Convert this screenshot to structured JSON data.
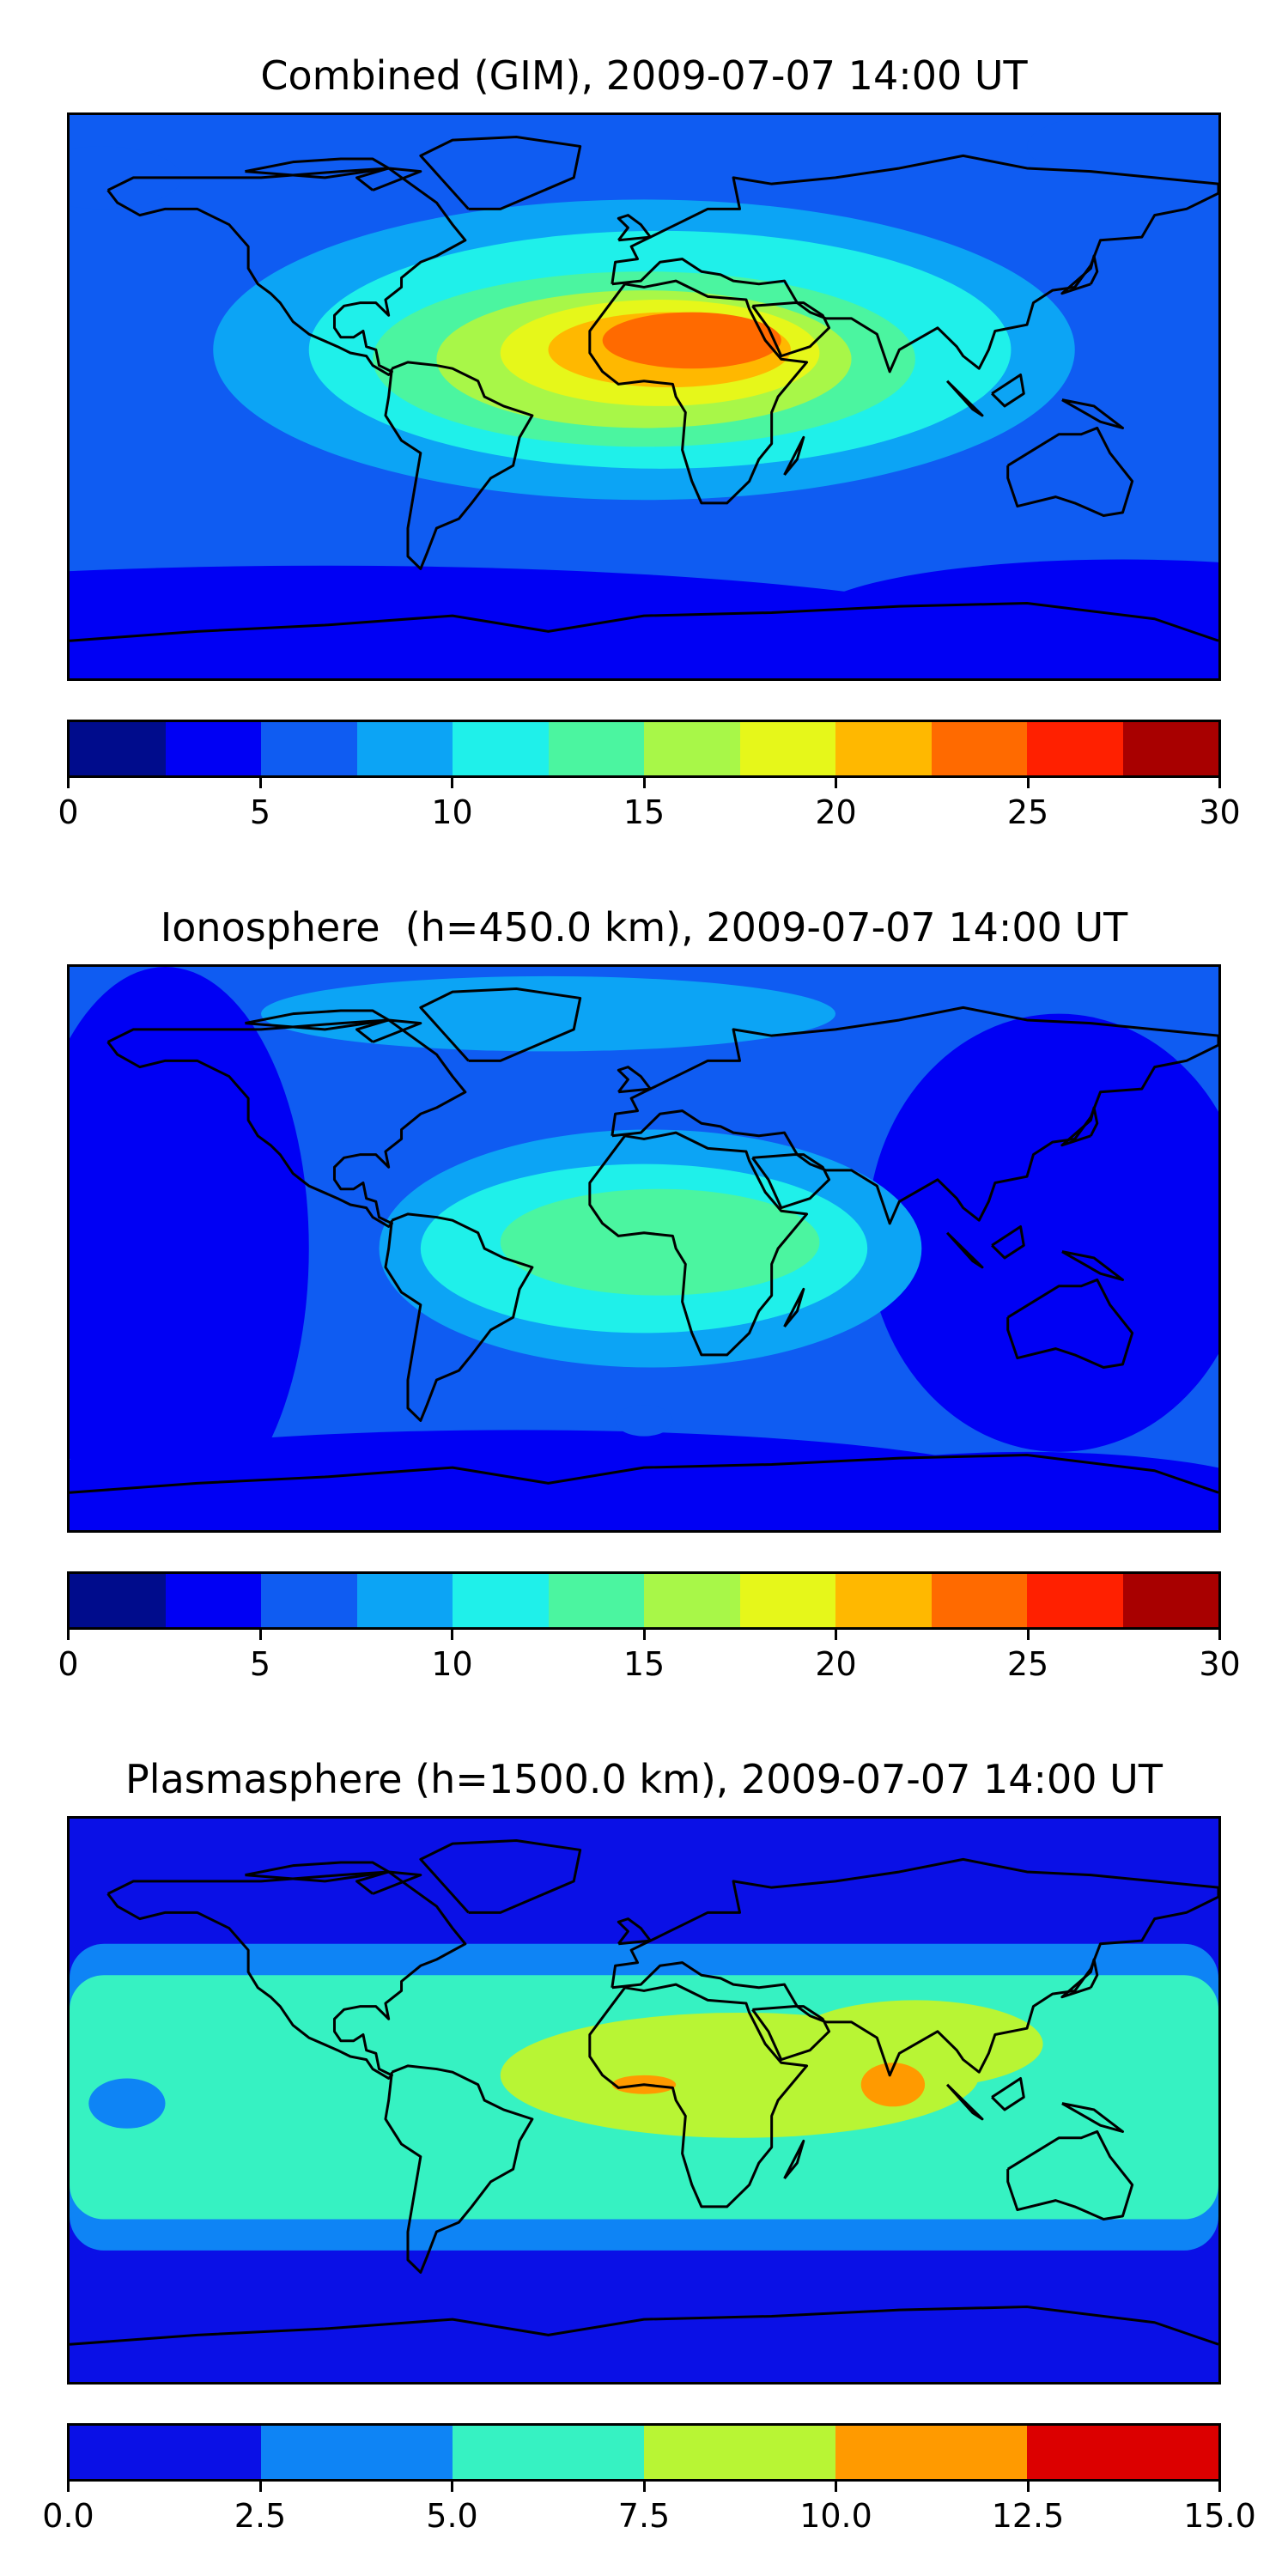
{
  "chart_data": [
    {
      "type": "heatmap",
      "title": "Combined (GIM), 2009-07-07 14:00 UT",
      "colorbar": {
        "range": [
          0,
          30
        ],
        "boundaries": [
          0,
          2.5,
          5,
          7.5,
          10,
          12.5,
          15,
          17.5,
          20,
          22.5,
          25,
          27.5,
          30
        ],
        "colors": [
          "#000c8c",
          "#0000f4",
          "#0f5cf2",
          "#0ca4f5",
          "#1ff0ea",
          "#4bf5a0",
          "#a8f748",
          "#e6f71a",
          "#ffb800",
          "#ff6a00",
          "#ff2000",
          "#a80000"
        ],
        "tick_values": [
          0,
          5,
          10,
          15,
          20,
          25,
          30
        ],
        "tick_labels": [
          "0",
          "5",
          "10",
          "15",
          "20",
          "25",
          "30"
        ]
      },
      "lon_range": [
        -180,
        180
      ],
      "lat_range": [
        -90,
        90
      ],
      "background_level": 2,
      "features": [
        {
          "level": 1,
          "lon": -100,
          "lat": -82,
          "rx": 230,
          "ry": 28
        },
        {
          "level": 1,
          "lon": 150,
          "lat": -72,
          "rx": 100,
          "ry": 20
        },
        {
          "level": 2,
          "lon": 160,
          "lat": 80,
          "rx": 40,
          "ry": 12
        },
        {
          "level": 2,
          "lon": -170,
          "lat": 70,
          "rx": 25,
          "ry": 10
        },
        {
          "level": 3,
          "lon": 0,
          "lat": 15,
          "rx": 135,
          "ry": 48
        },
        {
          "level": 4,
          "lon": 5,
          "lat": 15,
          "rx": 110,
          "ry": 38
        },
        {
          "level": 5,
          "lon": 0,
          "lat": 12,
          "rx": 85,
          "ry": 28
        },
        {
          "level": 6,
          "lon": 0,
          "lat": 12,
          "rx": 65,
          "ry": 22
        },
        {
          "level": 7,
          "lon": 5,
          "lat": 14,
          "rx": 50,
          "ry": 17
        },
        {
          "level": 8,
          "lon": 8,
          "lat": 15,
          "rx": 38,
          "ry": 12
        },
        {
          "level": 9,
          "lon": 15,
          "lat": 18,
          "rx": 28,
          "ry": 9
        }
      ]
    },
    {
      "type": "heatmap",
      "title": "Ionosphere  (h=450.0 km), 2009-07-07 14:00 UT",
      "colorbar": {
        "range": [
          0,
          30
        ],
        "boundaries": [
          0,
          2.5,
          5,
          7.5,
          10,
          12.5,
          15,
          17.5,
          20,
          22.5,
          25,
          27.5,
          30
        ],
        "colors": [
          "#000c8c",
          "#0000f4",
          "#0f5cf2",
          "#0ca4f5",
          "#1ff0ea",
          "#4bf5a0",
          "#a8f748",
          "#e6f71a",
          "#ffb800",
          "#ff6a00",
          "#ff2000",
          "#a80000"
        ],
        "tick_values": [
          0,
          5,
          10,
          15,
          20,
          25,
          30
        ],
        "tick_labels": [
          "0",
          "5",
          "10",
          "15",
          "20",
          "25",
          "30"
        ]
      },
      "lon_range": [
        -180,
        180
      ],
      "lat_range": [
        -90,
        90
      ],
      "background_level": 2,
      "features": [
        {
          "level": 1,
          "lon": -150,
          "lat": 0,
          "rx": 45,
          "ry": 90
        },
        {
          "level": 1,
          "lon": 130,
          "lat": 5,
          "rx": 60,
          "ry": 70
        },
        {
          "level": 1,
          "lon": -40,
          "lat": -80,
          "rx": 170,
          "ry": 22
        },
        {
          "level": 1,
          "lon": 120,
          "lat": -80,
          "rx": 80,
          "ry": 15
        },
        {
          "level": 3,
          "lon": -30,
          "lat": 75,
          "rx": 90,
          "ry": 12
        },
        {
          "level": 3,
          "lon": 2,
          "lat": 0,
          "rx": 85,
          "ry": 38
        },
        {
          "level": 4,
          "lon": 0,
          "lat": 0,
          "rx": 70,
          "ry": 27
        },
        {
          "level": 5,
          "lon": 5,
          "lat": 2,
          "rx": 50,
          "ry": 17
        },
        {
          "level": 2,
          "lon": 0,
          "lat": -55,
          "rx": 9,
          "ry": 5
        }
      ]
    },
    {
      "type": "heatmap",
      "title": "Plasmasphere (h=1500.0 km), 2009-07-07 14:00 UT",
      "colorbar": {
        "range": [
          0,
          15
        ],
        "boundaries": [
          0,
          2.5,
          5,
          7.5,
          10,
          12.5,
          15
        ],
        "colors": [
          "#0a10e6",
          "#0e84f5",
          "#36f2c2",
          "#b8f534",
          "#ff9a00",
          "#dc0000"
        ],
        "tick_values": [
          0,
          2.5,
          5,
          7.5,
          10,
          12.5,
          15
        ],
        "tick_labels": [
          "0.0",
          "2.5",
          "5.0",
          "7.5",
          "10.0",
          "12.5",
          "15.0"
        ]
      },
      "lon_range": [
        -180,
        180
      ],
      "lat_range": [
        -90,
        90
      ],
      "background_level": 0,
      "bands": [
        {
          "level": 1,
          "lat_north": 50,
          "lat_south": -48
        },
        {
          "level": 2,
          "lat_north": 40,
          "lat_south": -38
        }
      ],
      "features": [
        {
          "level": 1,
          "lon": -162,
          "lat": -1,
          "rx": 12,
          "ry": 8
        },
        {
          "level": 3,
          "lon": 30,
          "lat": 8,
          "rx": 75,
          "ry": 20
        },
        {
          "level": 3,
          "lon": 85,
          "lat": 18,
          "rx": 40,
          "ry": 14
        },
        {
          "level": 4,
          "lon": 0,
          "lat": 5,
          "rx": 10,
          "ry": 3
        },
        {
          "level": 4,
          "lon": 78,
          "lat": 5,
          "rx": 10,
          "ry": 7
        }
      ]
    }
  ]
}
